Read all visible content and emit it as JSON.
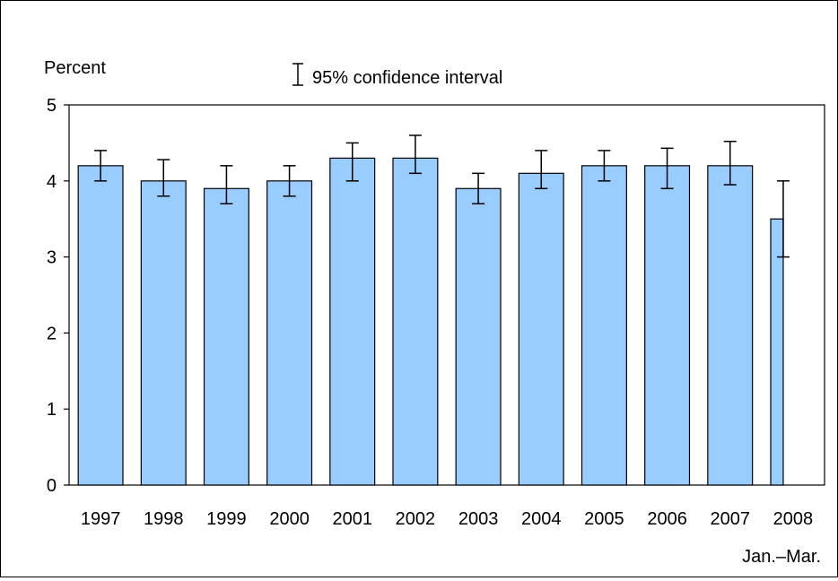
{
  "chart_data": {
    "type": "bar",
    "ylabel": "Percent",
    "legend_label": "95% confidence interval",
    "categories": [
      "1997",
      "1998",
      "1999",
      "2000",
      "2001",
      "2002",
      "2003",
      "2004",
      "2005",
      "2006",
      "2007",
      "2008"
    ],
    "values": [
      4.2,
      4.0,
      3.9,
      4.0,
      4.3,
      4.3,
      3.9,
      4.1,
      4.2,
      4.2,
      4.2,
      3.5
    ],
    "ci_lower": [
      4.0,
      3.8,
      3.7,
      3.8,
      4.0,
      4.1,
      3.7,
      3.9,
      4.0,
      3.9,
      3.95,
      3.0
    ],
    "ci_upper": [
      4.4,
      4.28,
      4.2,
      4.2,
      4.5,
      4.6,
      4.1,
      4.4,
      4.4,
      4.43,
      4.52,
      4.0
    ],
    "ylim": [
      0,
      5
    ],
    "yticks": [
      0,
      1,
      2,
      3,
      4,
      5
    ],
    "footnote": "Jan.–Mar.",
    "bar_color": "#99ccff",
    "grid": false,
    "legend_position": "top-center"
  }
}
